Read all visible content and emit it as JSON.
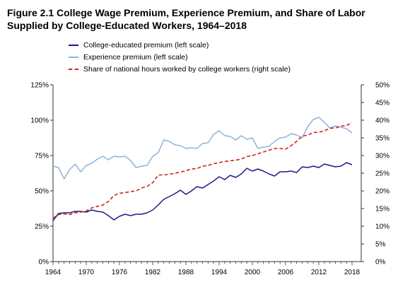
{
  "title": "Figure 2.1 College Wage Premium, Experience Premium, and Share of Labor Supplied by College-Educated Workers, 1964–2018",
  "chart_data": {
    "type": "line",
    "title": "Figure 2.1 College Wage Premium, Experience Premium, and Share of Labor Supplied by College-Educated Workers, 1964–2018",
    "legend_placement": "top",
    "grid": false,
    "x": [
      1964,
      1965,
      1966,
      1967,
      1968,
      1969,
      1970,
      1971,
      1972,
      1973,
      1974,
      1975,
      1976,
      1977,
      1978,
      1979,
      1980,
      1981,
      1982,
      1983,
      1984,
      1985,
      1986,
      1987,
      1988,
      1989,
      1990,
      1991,
      1992,
      1993,
      1994,
      1995,
      1996,
      1997,
      1998,
      1999,
      2000,
      2001,
      2002,
      2003,
      2004,
      2005,
      2006,
      2007,
      2008,
      2009,
      2010,
      2011,
      2012,
      2013,
      2014,
      2015,
      2016,
      2017,
      2018
    ],
    "x_ticks": [
      1964,
      1970,
      1976,
      1982,
      1988,
      1994,
      2000,
      2006,
      2012,
      2018
    ],
    "x_tick_labels": [
      "1964",
      "1970",
      "1976",
      "1982",
      "1988",
      "1994",
      "2000",
      "2006",
      "2012",
      "2018"
    ],
    "xlim": [
      1964,
      2018
    ],
    "left_axis": {
      "ylim": [
        0,
        1.25
      ],
      "ticks": [
        0,
        0.25,
        0.5,
        0.75,
        1.0,
        1.25
      ],
      "tick_labels": [
        "0%",
        "25%",
        "50%",
        "75%",
        "100%",
        "125%"
      ]
    },
    "right_axis": {
      "ylim": [
        0,
        0.5
      ],
      "ticks": [
        0,
        0.05,
        0.1,
        0.15,
        0.2,
        0.25,
        0.3,
        0.35,
        0.4,
        0.45,
        0.5
      ],
      "tick_labels": [
        "0%",
        "5%",
        "10%",
        "15%",
        "20%",
        "25%",
        "30%",
        "35%",
        "40%",
        "45%",
        "50%"
      ]
    },
    "series": [
      {
        "name": "College-educated premium (left scale)",
        "axis": "left",
        "color": "#1a1a8c",
        "style": "solid",
        "values": [
          0.29,
          0.34,
          0.345,
          0.345,
          0.355,
          0.355,
          0.35,
          0.365,
          0.355,
          0.35,
          0.325,
          0.295,
          0.32,
          0.335,
          0.325,
          0.335,
          0.335,
          0.345,
          0.365,
          0.4,
          0.44,
          0.46,
          0.48,
          0.505,
          0.475,
          0.5,
          0.53,
          0.52,
          0.545,
          0.57,
          0.6,
          0.58,
          0.61,
          0.595,
          0.62,
          0.66,
          0.64,
          0.655,
          0.64,
          0.62,
          0.605,
          0.635,
          0.635,
          0.64,
          0.63,
          0.67,
          0.665,
          0.675,
          0.665,
          0.69,
          0.68,
          0.67,
          0.675,
          0.7,
          0.685
        ]
      },
      {
        "name": "Experience premium (left scale)",
        "axis": "left",
        "color": "#8fb3d9",
        "style": "solid",
        "values": [
          0.675,
          0.665,
          0.585,
          0.65,
          0.69,
          0.635,
          0.68,
          0.695,
          0.725,
          0.745,
          0.72,
          0.745,
          0.74,
          0.745,
          0.715,
          0.665,
          0.675,
          0.68,
          0.745,
          0.77,
          0.86,
          0.85,
          0.825,
          0.82,
          0.8,
          0.805,
          0.8,
          0.835,
          0.84,
          0.9,
          0.925,
          0.89,
          0.885,
          0.86,
          0.89,
          0.865,
          0.875,
          0.8,
          0.81,
          0.815,
          0.85,
          0.875,
          0.88,
          0.905,
          0.895,
          0.875,
          0.955,
          1.005,
          1.02,
          0.985,
          0.945,
          0.96,
          0.95,
          0.94,
          0.91
        ]
      },
      {
        "name": "Share of national hours worked by college workers (right scale)",
        "axis": "right",
        "color": "#cc2222",
        "style": "dashed",
        "values": [
          0.123,
          0.133,
          0.135,
          0.133,
          0.138,
          0.14,
          0.143,
          0.152,
          0.156,
          0.16,
          0.17,
          0.187,
          0.193,
          0.195,
          0.198,
          0.2,
          0.208,
          0.213,
          0.223,
          0.245,
          0.245,
          0.247,
          0.25,
          0.253,
          0.257,
          0.262,
          0.263,
          0.27,
          0.272,
          0.277,
          0.28,
          0.283,
          0.285,
          0.287,
          0.29,
          0.297,
          0.3,
          0.305,
          0.31,
          0.315,
          0.32,
          0.32,
          0.318,
          0.328,
          0.34,
          0.355,
          0.358,
          0.365,
          0.366,
          0.37,
          0.377,
          0.378,
          0.383,
          0.385,
          0.393
        ]
      }
    ]
  }
}
